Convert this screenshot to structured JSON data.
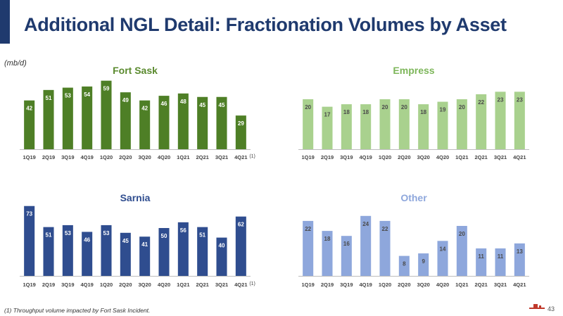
{
  "page": {
    "title": "Additional NGL Detail: Fractionation Volumes by Asset",
    "unit": "(mb/d)",
    "footnote": "(1) Throughput volume impacted by Fort Sask Incident.",
    "page_number": "43",
    "colors": {
      "title": "#1f3a6e",
      "accent": "#1f3a6e",
      "logo": "#c0392b"
    }
  },
  "chart_data": [
    {
      "type": "bar",
      "title": "Fort Sask",
      "title_color": "#5a8a2e",
      "bar_color": "#4e7f26",
      "label_dark": false,
      "categories": [
        "1Q19",
        "2Q19",
        "3Q19",
        "4Q19",
        "1Q20",
        "2Q20",
        "3Q20",
        "4Q20",
        "1Q21",
        "2Q21",
        "3Q21",
        "4Q21"
      ],
      "values": [
        42,
        51,
        53,
        54,
        59,
        49,
        42,
        46,
        48,
        45,
        45,
        29
      ],
      "footnote_marker": "(1)"
    },
    {
      "type": "bar",
      "title": "Empress",
      "title_color": "#7db65a",
      "bar_color": "#a9d18e",
      "label_dark": true,
      "categories": [
        "1Q19",
        "2Q19",
        "3Q19",
        "4Q19",
        "1Q20",
        "2Q20",
        "3Q20",
        "4Q20",
        "1Q21",
        "2Q21",
        "3Q21",
        "4Q21"
      ],
      "values": [
        20,
        17,
        18,
        18,
        20,
        20,
        18,
        19,
        20,
        22,
        23,
        23
      ],
      "footnote_marker": ""
    },
    {
      "type": "bar",
      "title": "Sarnia",
      "title_color": "#2f4d8f",
      "bar_color": "#2f4d8f",
      "label_dark": false,
      "categories": [
        "1Q19",
        "2Q19",
        "3Q19",
        "4Q19",
        "1Q20",
        "2Q20",
        "3Q20",
        "4Q20",
        "1Q21",
        "2Q21",
        "3Q21",
        "4Q21"
      ],
      "values": [
        73,
        51,
        53,
        46,
        53,
        45,
        41,
        50,
        56,
        51,
        40,
        62
      ],
      "footnote_marker": "(1)"
    },
    {
      "type": "bar",
      "title": "Other",
      "title_color": "#8ea7dc",
      "bar_color": "#8ea7dc",
      "label_dark": true,
      "categories": [
        "1Q19",
        "2Q19",
        "3Q19",
        "4Q19",
        "1Q20",
        "2Q20",
        "3Q20",
        "4Q20",
        "1Q21",
        "2Q21",
        "3Q21",
        "4Q21"
      ],
      "values": [
        22,
        18,
        16,
        24,
        22,
        8,
        9,
        14,
        20,
        11,
        11,
        13
      ],
      "footnote_marker": ""
    }
  ]
}
